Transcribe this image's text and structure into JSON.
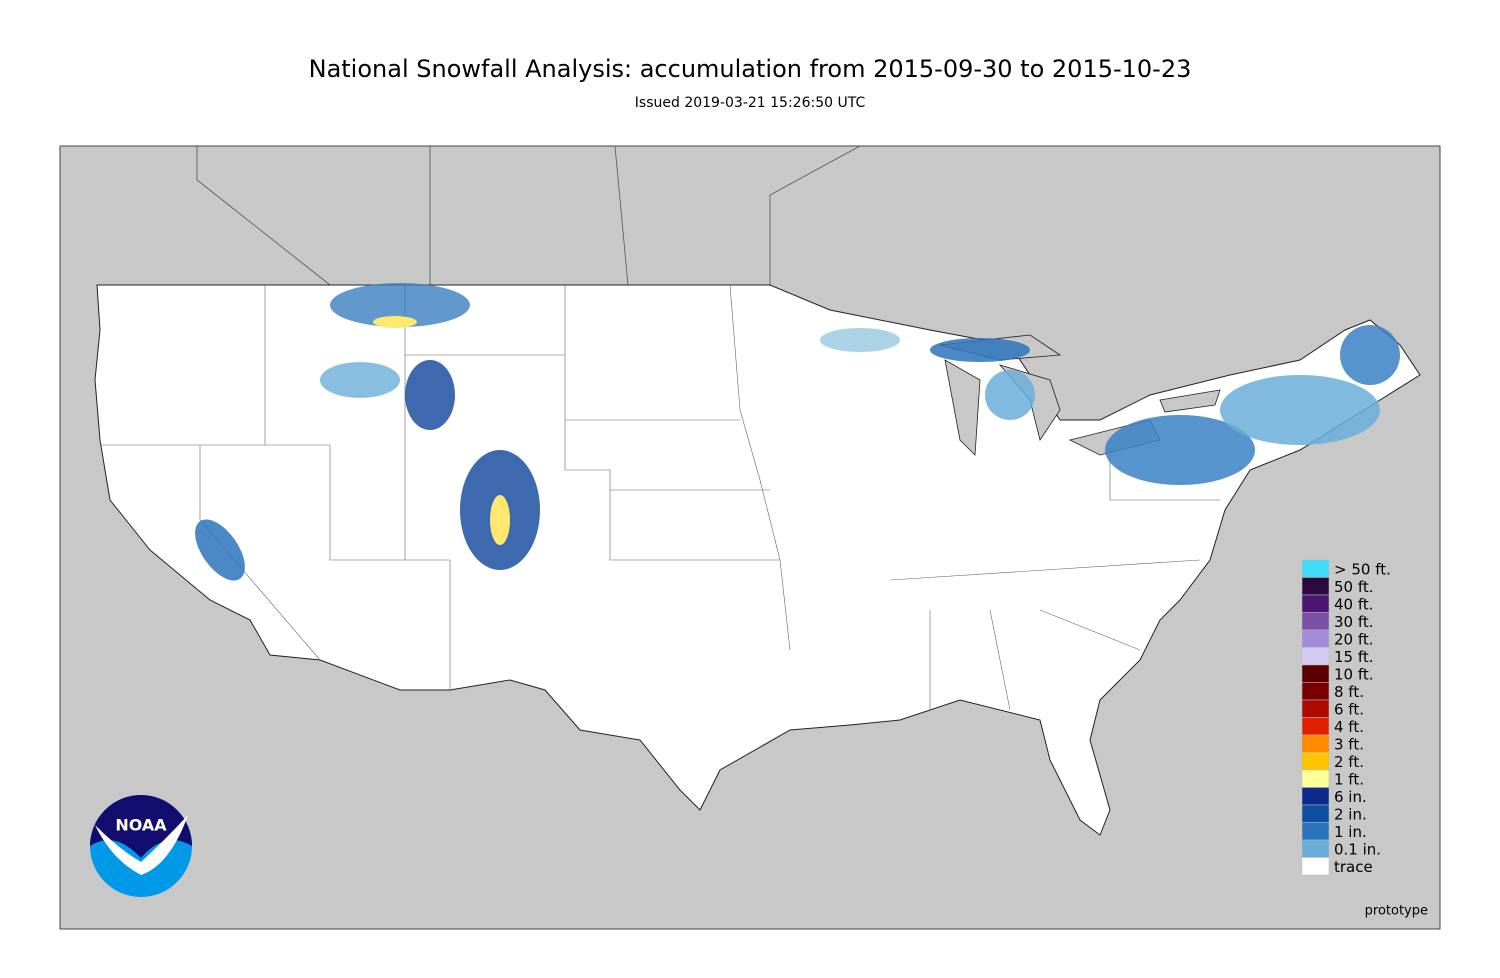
{
  "header": {
    "title": "National Snowfall Analysis: accumulation from 2015-09-30 to 2015-10-23",
    "subtitle": "Issued 2019-03-21 15:26:50 UTC"
  },
  "legend": {
    "items": [
      {
        "label": "> 50 ft.",
        "color": "#40dcf8"
      },
      {
        "label": "50 ft.",
        "color": "#2b0a3d"
      },
      {
        "label": "40 ft.",
        "color": "#4b1670"
      },
      {
        "label": "30 ft.",
        "color": "#7a4fa8"
      },
      {
        "label": "20 ft.",
        "color": "#a58ad8"
      },
      {
        "label": "15 ft.",
        "color": "#d4ccf5"
      },
      {
        "label": "10 ft.",
        "color": "#5a0000"
      },
      {
        "label": "8 ft.",
        "color": "#7a0000"
      },
      {
        "label": "6 ft.",
        "color": "#b00a00"
      },
      {
        "label": "4 ft.",
        "color": "#e02000"
      },
      {
        "label": "3 ft.",
        "color": "#ff8a00"
      },
      {
        "label": "2 ft.",
        "color": "#ffc400"
      },
      {
        "label": "1 ft.",
        "color": "#ffff99"
      },
      {
        "label": "6 in.",
        "color": "#0c2a8c"
      },
      {
        "label": "2 in.",
        "color": "#0d4ea0"
      },
      {
        "label": "1 in.",
        "color": "#2a74bc"
      },
      {
        "label": "0.1 in.",
        "color": "#6aaed8"
      },
      {
        "label": "trace",
        "color": "#ffffff"
      }
    ]
  },
  "logo": {
    "text": "NOAA"
  },
  "footer": {
    "note": "prototype"
  }
}
